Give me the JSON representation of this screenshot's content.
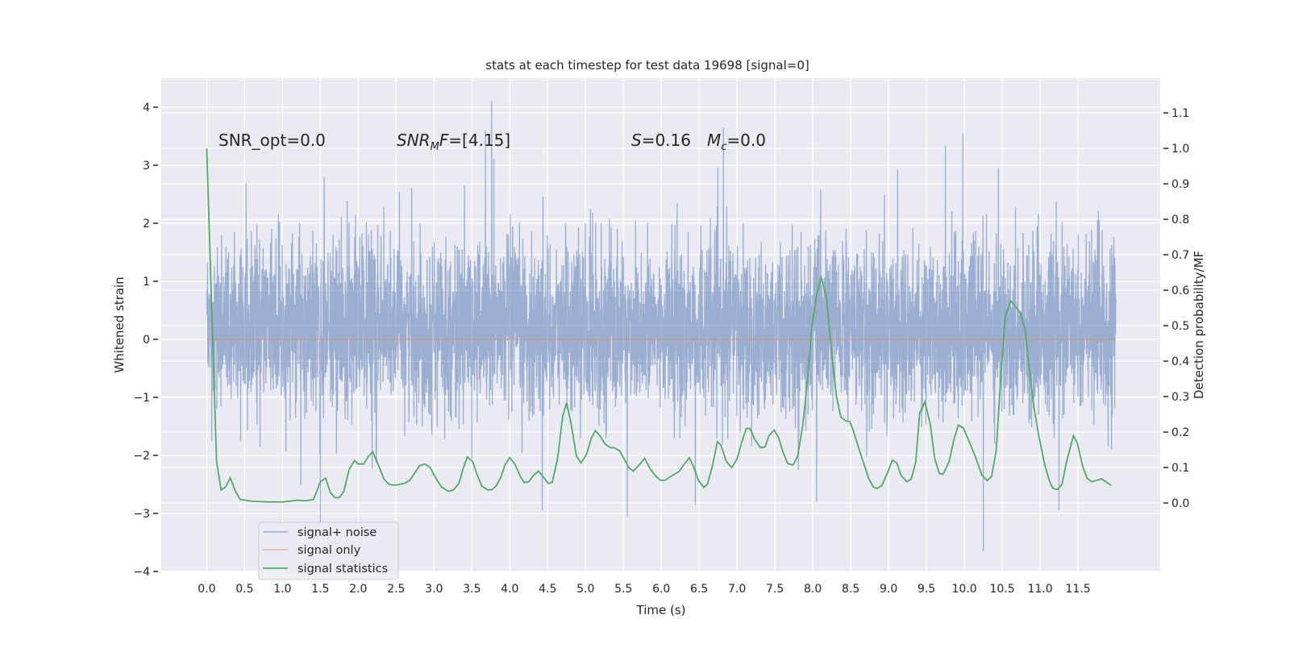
{
  "chart_data": {
    "type": "line",
    "title": "stats at each timestep for test data 19698 [signal=0]",
    "xlabel": "Time (s)",
    "ylabel": "Whitened strain",
    "ylabel_right": "Detection probability/MF",
    "xlim": [
      -0.6,
      12.585
    ],
    "ylim": [
      -4,
      4.5
    ],
    "ylim_right": [
      -0.193,
      1.198
    ],
    "grid": true,
    "x_ticks": [
      "0.0",
      "0.5",
      "1.0",
      "1.5",
      "2.0",
      "2.5",
      "3.0",
      "3.5",
      "4.0",
      "4.5",
      "5.0",
      "5.5",
      "6.0",
      "6.5",
      "7.0",
      "7.5",
      "8.0",
      "8.5",
      "9.0",
      "9.5",
      "10.0",
      "10.5",
      "11.0",
      "11.5"
    ],
    "y_ticks": [
      "−4",
      "−3",
      "−2",
      "−1",
      "0",
      "1",
      "2",
      "3",
      "4"
    ],
    "y_ticks_right": [
      "0.0",
      "0.1",
      "0.2",
      "0.3",
      "0.4",
      "0.5",
      "0.6",
      "0.7",
      "0.8",
      "0.9",
      "1.0",
      "1.1"
    ],
    "annotations": {
      "snr_opt": "SNR_opt=0.0",
      "snr_mf_sym": "SNR",
      "snr_mf_sub": "M",
      "snr_mf_sym2": "F",
      "snr_mf_val": "=[4.15]",
      "s_sym": "S",
      "s_val": "=0.16",
      "mc_sym": "M",
      "mc_sub": "c",
      "mc_val": "=0.0"
    },
    "legend": {
      "placement": "lower-left",
      "entries": [
        "signal+ noise",
        "signal only",
        "signal statistics"
      ]
    },
    "colors": {
      "background": "#eaeaf2",
      "noise": "#4c72b0",
      "signal": "#dd8452",
      "statistics": "#55a868"
    },
    "series": [
      {
        "name": "signal+ noise",
        "axis": "left",
        "t_range": [
          0,
          12
        ],
        "std": 0.72,
        "extremes": [
          [
            3.76,
            4.1
          ],
          [
            3.68,
            3.6
          ],
          [
            3.79,
            3.1
          ],
          [
            6.82,
            3.65
          ],
          [
            9.75,
            3.35
          ],
          [
            9.98,
            3.55
          ],
          [
            1.55,
            2.8
          ],
          [
            10.45,
            2.95
          ],
          [
            10.25,
            -3.65
          ],
          [
            9.98,
            -3.2
          ],
          [
            5.55,
            -3.05
          ],
          [
            1.5,
            -3.2
          ],
          [
            4.43,
            -2.95
          ],
          [
            11.25,
            -2.95
          ],
          [
            8.05,
            -2.8
          ],
          [
            6.45,
            -2.85
          ]
        ]
      },
      {
        "name": "signal only",
        "axis": "left",
        "t": [
          0,
          12
        ],
        "values": [
          0,
          0
        ]
      },
      {
        "name": "signal statistics",
        "axis": "right",
        "points": [
          [
            0,
            1.0
          ],
          [
            0.13,
            0.117
          ],
          [
            0.19,
            0.037
          ],
          [
            0.25,
            0.045
          ],
          [
            0.31,
            0.071
          ],
          [
            0.38,
            0.033
          ],
          [
            0.44,
            0.01
          ],
          [
            0.6,
            0.005
          ],
          [
            0.8,
            0.003
          ],
          [
            1.0,
            0.003
          ],
          [
            1.2,
            0.008
          ],
          [
            1.3,
            0.006
          ],
          [
            1.41,
            0.01
          ],
          [
            1.5,
            0.06
          ],
          [
            1.57,
            0.07
          ],
          [
            1.63,
            0.03
          ],
          [
            1.69,
            0.015
          ],
          [
            1.75,
            0.015
          ],
          [
            1.81,
            0.033
          ],
          [
            1.88,
            0.094
          ],
          [
            1.95,
            0.12
          ],
          [
            2.0,
            0.11
          ],
          [
            2.07,
            0.11
          ],
          [
            2.13,
            0.13
          ],
          [
            2.19,
            0.145
          ],
          [
            2.26,
            0.11
          ],
          [
            2.34,
            0.067
          ],
          [
            2.41,
            0.052
          ],
          [
            2.49,
            0.05
          ],
          [
            2.62,
            0.056
          ],
          [
            2.68,
            0.064
          ],
          [
            2.74,
            0.083
          ],
          [
            2.81,
            0.105
          ],
          [
            2.88,
            0.11
          ],
          [
            2.95,
            0.1
          ],
          [
            3.02,
            0.071
          ],
          [
            3.1,
            0.045
          ],
          [
            3.19,
            0.033
          ],
          [
            3.26,
            0.037
          ],
          [
            3.33,
            0.056
          ],
          [
            3.38,
            0.094
          ],
          [
            3.44,
            0.13
          ],
          [
            3.51,
            0.117
          ],
          [
            3.57,
            0.079
          ],
          [
            3.63,
            0.048
          ],
          [
            3.71,
            0.037
          ],
          [
            3.76,
            0.037
          ],
          [
            3.82,
            0.048
          ],
          [
            3.88,
            0.071
          ],
          [
            3.94,
            0.109
          ],
          [
            4.0,
            0.128
          ],
          [
            4.07,
            0.109
          ],
          [
            4.14,
            0.075
          ],
          [
            4.19,
            0.058
          ],
          [
            4.25,
            0.06
          ],
          [
            4.32,
            0.079
          ],
          [
            4.38,
            0.09
          ],
          [
            4.45,
            0.071
          ],
          [
            4.51,
            0.055
          ],
          [
            4.56,
            0.058
          ],
          [
            4.63,
            0.124
          ],
          [
            4.7,
            0.245
          ],
          [
            4.75,
            0.283
          ],
          [
            4.81,
            0.223
          ],
          [
            4.88,
            0.132
          ],
          [
            4.94,
            0.113
          ],
          [
            5.01,
            0.136
          ],
          [
            5.08,
            0.185
          ],
          [
            5.13,
            0.204
          ],
          [
            5.19,
            0.189
          ],
          [
            5.26,
            0.166
          ],
          [
            5.33,
            0.156
          ],
          [
            5.38,
            0.156
          ],
          [
            5.45,
            0.147
          ],
          [
            5.51,
            0.124
          ],
          [
            5.57,
            0.1
          ],
          [
            5.63,
            0.09
          ],
          [
            5.7,
            0.105
          ],
          [
            5.78,
            0.126
          ],
          [
            5.86,
            0.094
          ],
          [
            5.93,
            0.075
          ],
          [
            5.99,
            0.064
          ],
          [
            6.05,
            0.064
          ],
          [
            6.13,
            0.075
          ],
          [
            6.24,
            0.09
          ],
          [
            6.3,
            0.109
          ],
          [
            6.37,
            0.128
          ],
          [
            6.43,
            0.1
          ],
          [
            6.49,
            0.064
          ],
          [
            6.56,
            0.044
          ],
          [
            6.61,
            0.053
          ],
          [
            6.68,
            0.109
          ],
          [
            6.74,
            0.173
          ],
          [
            6.79,
            0.162
          ],
          [
            6.86,
            0.117
          ],
          [
            6.93,
            0.1
          ],
          [
            7.0,
            0.124
          ],
          [
            7.06,
            0.17
          ],
          [
            7.12,
            0.21
          ],
          [
            7.17,
            0.21
          ],
          [
            7.24,
            0.177
          ],
          [
            7.31,
            0.156
          ],
          [
            7.37,
            0.158
          ],
          [
            7.42,
            0.189
          ],
          [
            7.49,
            0.206
          ],
          [
            7.55,
            0.183
          ],
          [
            7.6,
            0.147
          ],
          [
            7.67,
            0.111
          ],
          [
            7.74,
            0.107
          ],
          [
            7.8,
            0.132
          ],
          [
            7.87,
            0.223
          ],
          [
            7.93,
            0.351
          ],
          [
            7.99,
            0.502
          ],
          [
            8.05,
            0.585
          ],
          [
            8.11,
            0.636
          ],
          [
            8.18,
            0.581
          ],
          [
            8.24,
            0.442
          ],
          [
            8.31,
            0.302
          ],
          [
            8.37,
            0.242
          ],
          [
            8.43,
            0.232
          ],
          [
            8.49,
            0.229
          ],
          [
            8.54,
            0.2
          ],
          [
            8.64,
            0.132
          ],
          [
            8.74,
            0.068
          ],
          [
            8.8,
            0.045
          ],
          [
            8.85,
            0.041
          ],
          [
            8.91,
            0.049
          ],
          [
            8.99,
            0.087
          ],
          [
            9.05,
            0.121
          ],
          [
            9.11,
            0.113
          ],
          [
            9.16,
            0.079
          ],
          [
            9.24,
            0.06
          ],
          [
            9.3,
            0.068
          ],
          [
            9.36,
            0.117
          ],
          [
            9.41,
            0.253
          ],
          [
            9.48,
            0.285
          ],
          [
            9.55,
            0.223
          ],
          [
            9.61,
            0.125
          ],
          [
            9.67,
            0.083
          ],
          [
            9.72,
            0.081
          ],
          [
            9.8,
            0.117
          ],
          [
            9.86,
            0.177
          ],
          [
            9.92,
            0.22
          ],
          [
            9.99,
            0.211
          ],
          [
            10.07,
            0.17
          ],
          [
            10.15,
            0.128
          ],
          [
            10.23,
            0.079
          ],
          [
            10.3,
            0.063
          ],
          [
            10.36,
            0.075
          ],
          [
            10.42,
            0.147
          ],
          [
            10.48,
            0.351
          ],
          [
            10.54,
            0.525
          ],
          [
            10.61,
            0.57
          ],
          [
            10.67,
            0.556
          ],
          [
            10.74,
            0.536
          ],
          [
            10.8,
            0.491
          ],
          [
            10.86,
            0.374
          ],
          [
            10.92,
            0.268
          ],
          [
            10.98,
            0.192
          ],
          [
            11.06,
            0.109
          ],
          [
            11.12,
            0.064
          ],
          [
            11.17,
            0.041
          ],
          [
            11.23,
            0.038
          ],
          [
            11.29,
            0.053
          ],
          [
            11.35,
            0.117
          ],
          [
            11.44,
            0.19
          ],
          [
            11.49,
            0.17
          ],
          [
            11.56,
            0.105
          ],
          [
            11.62,
            0.07
          ],
          [
            11.68,
            0.06
          ],
          [
            11.81,
            0.068
          ],
          [
            11.94,
            0.05
          ]
        ]
      }
    ]
  }
}
